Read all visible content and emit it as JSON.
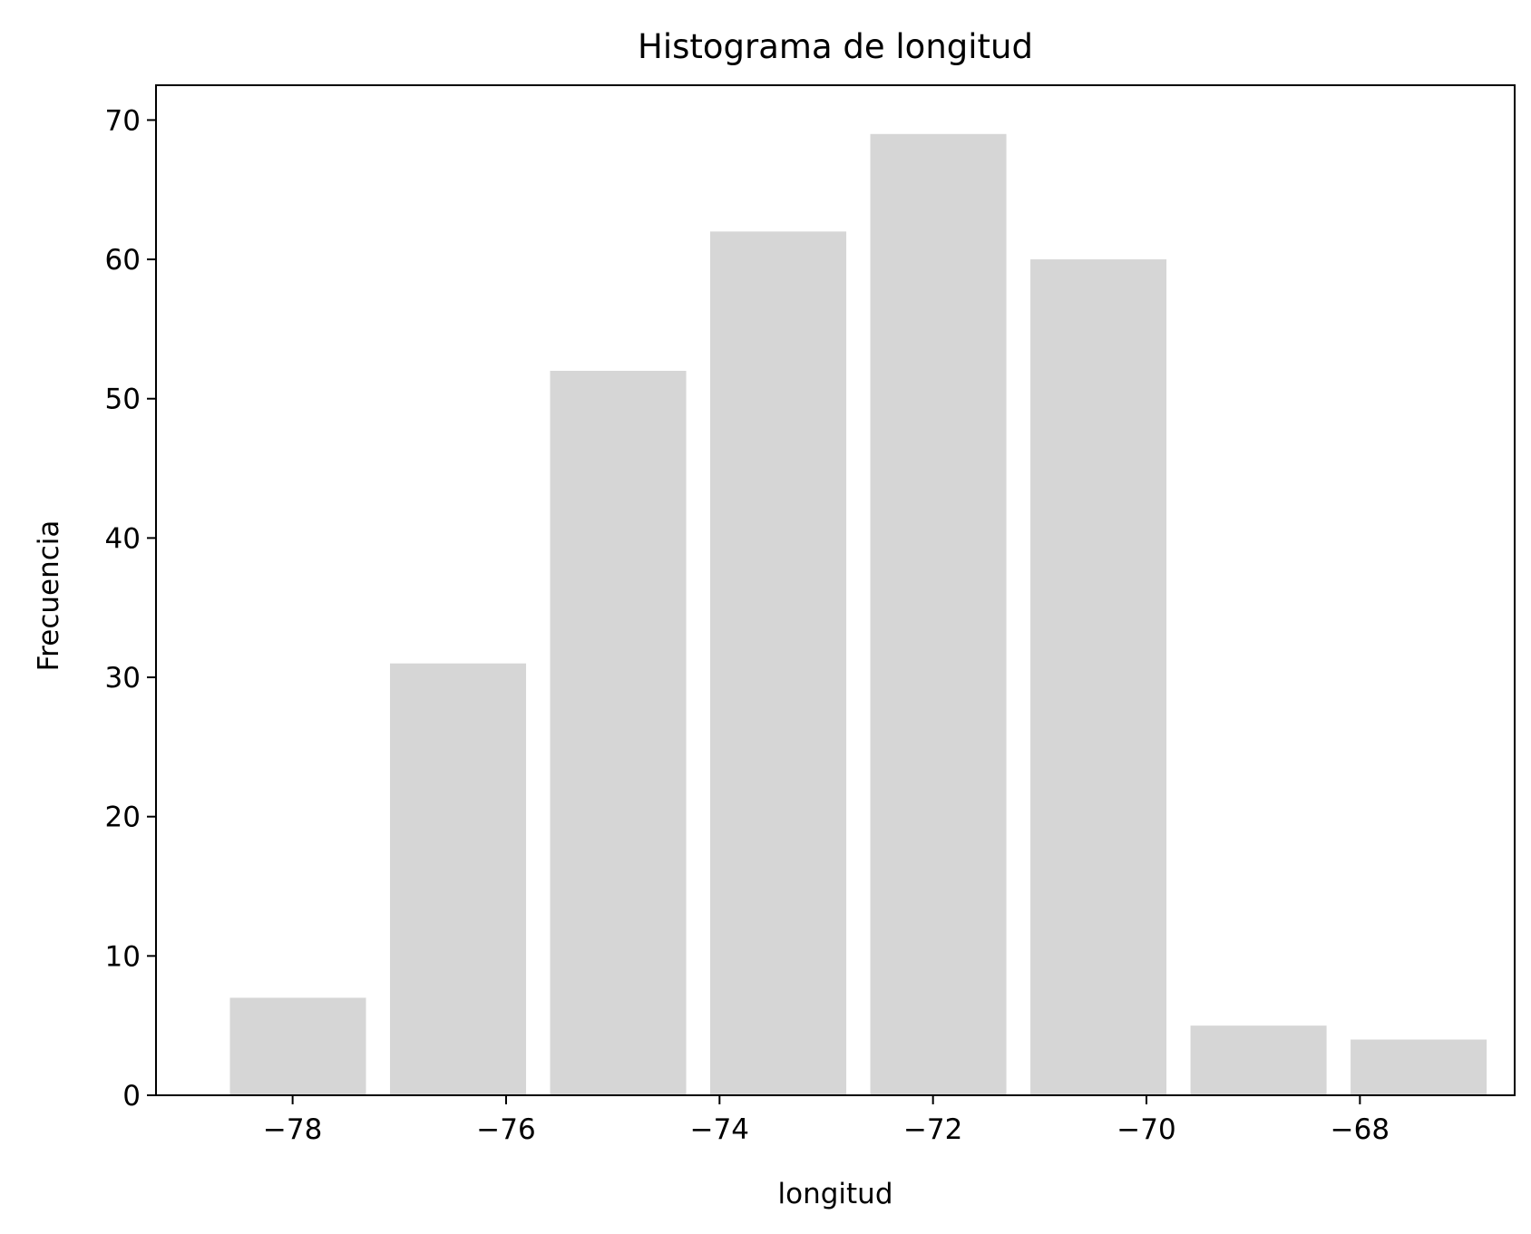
{
  "chart_data": {
    "type": "bar",
    "title": "Histograma de longitud",
    "xlabel": "longitud",
    "ylabel": "Frecuencia",
    "bins": [
      {
        "start": -78.7,
        "end": -77.2,
        "value": 7
      },
      {
        "start": -77.2,
        "end": -75.7,
        "value": 31
      },
      {
        "start": -75.7,
        "end": -74.2,
        "value": 52
      },
      {
        "start": -74.2,
        "end": -72.7,
        "value": 62
      },
      {
        "start": -72.7,
        "end": -71.2,
        "value": 69
      },
      {
        "start": -71.2,
        "end": -69.7,
        "value": 60
      },
      {
        "start": -69.7,
        "end": -68.2,
        "value": 5
      },
      {
        "start": -68.2,
        "end": -66.7,
        "value": 4
      }
    ],
    "bar_width_fraction": 0.85,
    "xlim": [
      -79.28,
      -66.55
    ],
    "ylim": [
      0,
      72.5
    ],
    "xticks": [
      -78,
      -76,
      -74,
      -72,
      -70,
      -68
    ],
    "xtick_labels": [
      "−78",
      "−76",
      "−74",
      "−72",
      "−70",
      "−68"
    ],
    "yticks": [
      0,
      10,
      20,
      30,
      40,
      50,
      60,
      70
    ],
    "ytick_labels": [
      "0",
      "10",
      "20",
      "30",
      "40",
      "50",
      "60",
      "70"
    ],
    "bar_color": "#d6d6d6",
    "axis_color": "#000000",
    "grid": false,
    "legend": "none"
  }
}
